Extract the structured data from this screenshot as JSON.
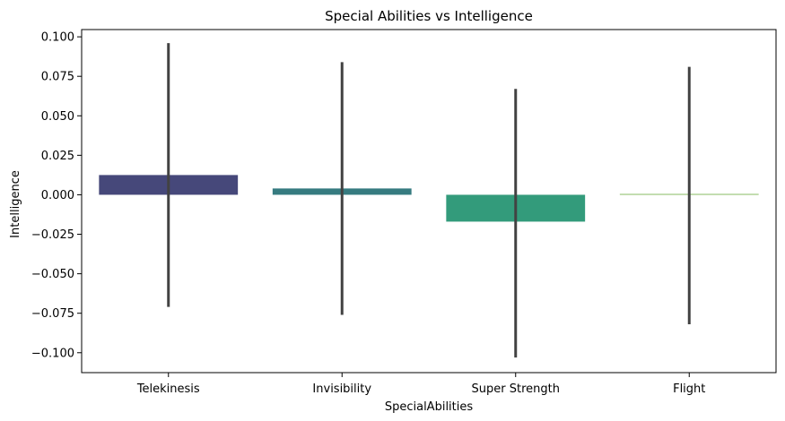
{
  "chart_data": {
    "type": "bar",
    "title": "Special Abilities vs Intelligence",
    "xlabel": "SpecialAbilities",
    "ylabel": "Intelligence",
    "categories": [
      "Telekinesis",
      "Invisibility",
      "Super Strength",
      "Flight"
    ],
    "values": [
      0.0125,
      0.004,
      -0.017,
      0.0005
    ],
    "error_low": [
      -0.071,
      -0.076,
      -0.103,
      -0.082
    ],
    "error_high": [
      0.096,
      0.084,
      0.067,
      0.081
    ],
    "bar_colors": [
      "#46487a",
      "#367b80",
      "#339b7b",
      "#7ab34e"
    ],
    "error_bar_color": "#424242",
    "yticks": [
      -0.1,
      -0.075,
      -0.05,
      -0.025,
      0.0,
      0.025,
      0.05,
      0.075,
      0.1
    ],
    "ytick_labels": [
      "−0.100",
      "−0.075",
      "−0.050",
      "−0.025",
      "0.000",
      "0.025",
      "0.050",
      "0.075",
      "0.100"
    ],
    "ylim": [
      -0.1126,
      0.1046
    ],
    "grid": false,
    "legend": "none"
  }
}
